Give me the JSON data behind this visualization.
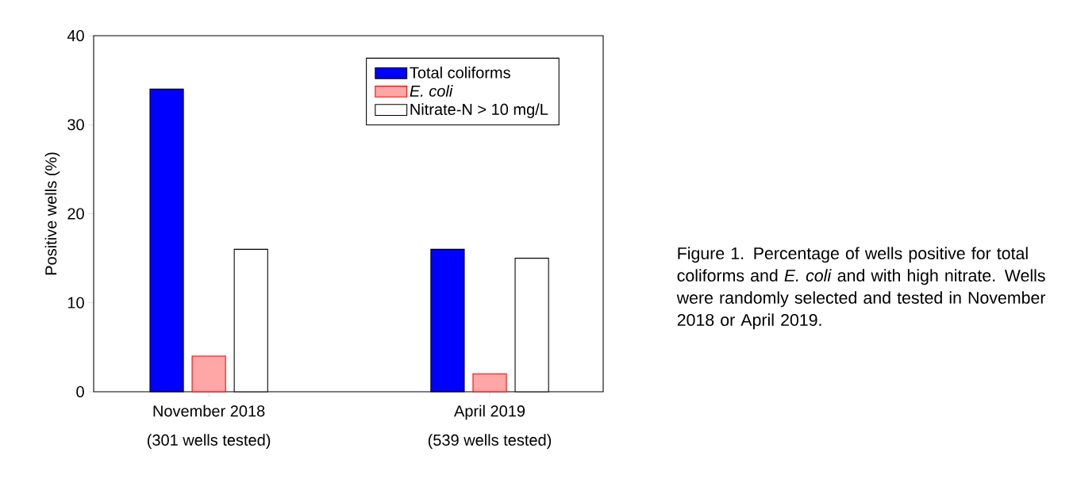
{
  "chart_data": {
    "type": "bar",
    "ylabel": "Positive wells (%)",
    "categories": [
      "November 2018",
      "April 2019"
    ],
    "series": [
      {
        "name": "Total coliforms",
        "color": "#0000ff",
        "values": [
          34,
          16
        ]
      },
      {
        "name": "E. coli",
        "color": "#ff0000",
        "values": [
          4,
          2
        ]
      },
      {
        "name": "Nitrate-N > 10 mg/L",
        "color": "#ffffff",
        "values": [
          16,
          15
        ]
      }
    ],
    "ylim": [
      0,
      40
    ],
    "yticks": [
      0,
      10,
      20,
      30,
      40
    ],
    "grid": false,
    "legend": "top right",
    "annotations": [
      "(301 wells tested)",
      "(539 wells tested)",
      "Figure 1. Percentage of wells positive for total coliforms and *E. coli* and with high nitrate.  Wells were randomly selected and tested in November 2018 or April 2019."
    ]
  }
}
